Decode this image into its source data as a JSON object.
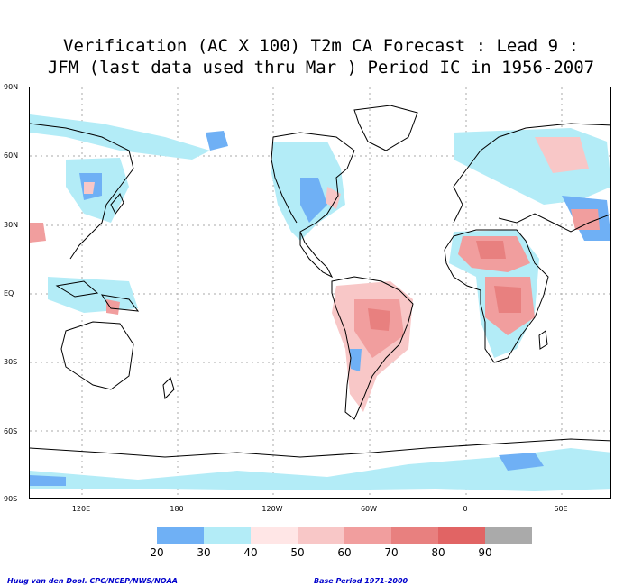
{
  "title": {
    "line1": "Verification (AC X 100) T2m CA Forecast : Lead 9 :",
    "line2": "JFM (last data used thru Mar ) Period IC in 1956-2007"
  },
  "lat_labels": [
    "90N",
    "60N",
    "30N",
    "EQ",
    "30S",
    "60S",
    "90S"
  ],
  "lon_labels": [
    "120E",
    "180",
    "120W",
    "60W",
    "0",
    "60E"
  ],
  "colorbar": {
    "labels": [
      "20",
      "30",
      "40",
      "50",
      "60",
      "70",
      "80",
      "90"
    ],
    "colors": [
      "#6fb0f5",
      "#b3ecf7",
      "#ffe6e6",
      "#f8c7c7",
      "#f19e9e",
      "#e8807f",
      "#e16464",
      "#aaaaaa"
    ]
  },
  "credits": {
    "left": "Huug van den Dool. CPC/NCEP/NWS/NOAA",
    "right": "Base Period 1971-2000"
  }
}
